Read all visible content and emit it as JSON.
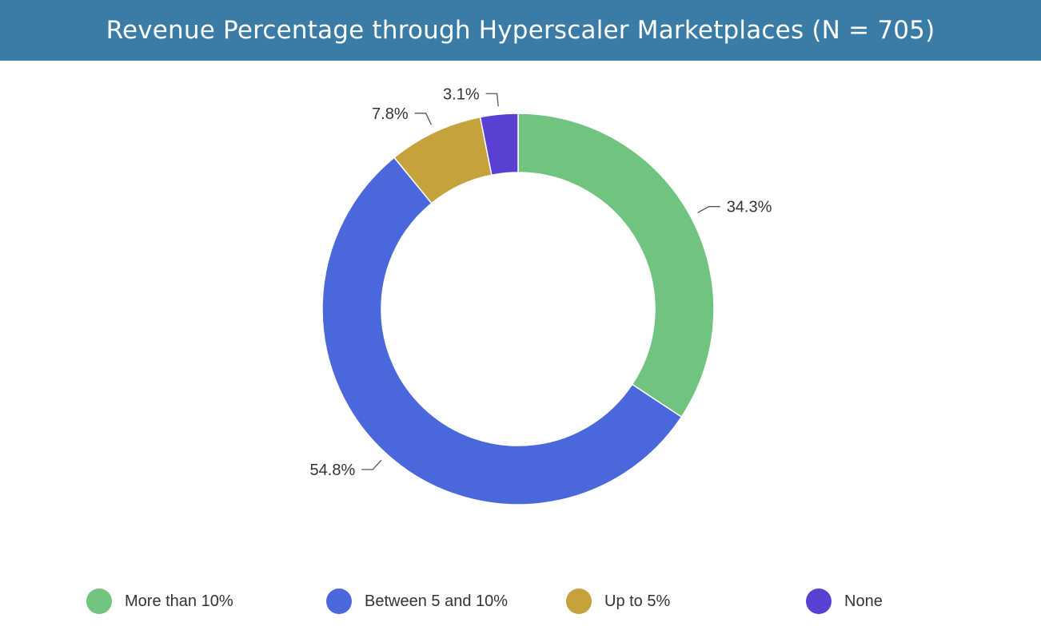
{
  "header": {
    "title": "Revenue Percentage through Hyperscaler Marketplaces (N = 705)"
  },
  "colors": {
    "header_bg": "#3a7ca5",
    "label_text": "#333333",
    "leader_line": "#555555"
  },
  "chart_data": {
    "type": "pie",
    "variant": "donut",
    "title": "Revenue Percentage through Hyperscaler Marketplaces (N = 705)",
    "start_angle_deg": 0,
    "direction": "clockwise",
    "legend_position": "bottom",
    "slices": [
      {
        "label": "More than 10%",
        "value": 34.3,
        "display": "34.3%",
        "color": "#71c47f"
      },
      {
        "label": "Between 5 and 10%",
        "value": 54.8,
        "display": "54.8%",
        "color": "#4a67dc"
      },
      {
        "label": "Up to 5%",
        "value": 7.8,
        "display": "7.8%",
        "color": "#c5a23b"
      },
      {
        "label": "None",
        "value": 3.1,
        "display": "3.1%",
        "color": "#5a40d2"
      }
    ]
  }
}
